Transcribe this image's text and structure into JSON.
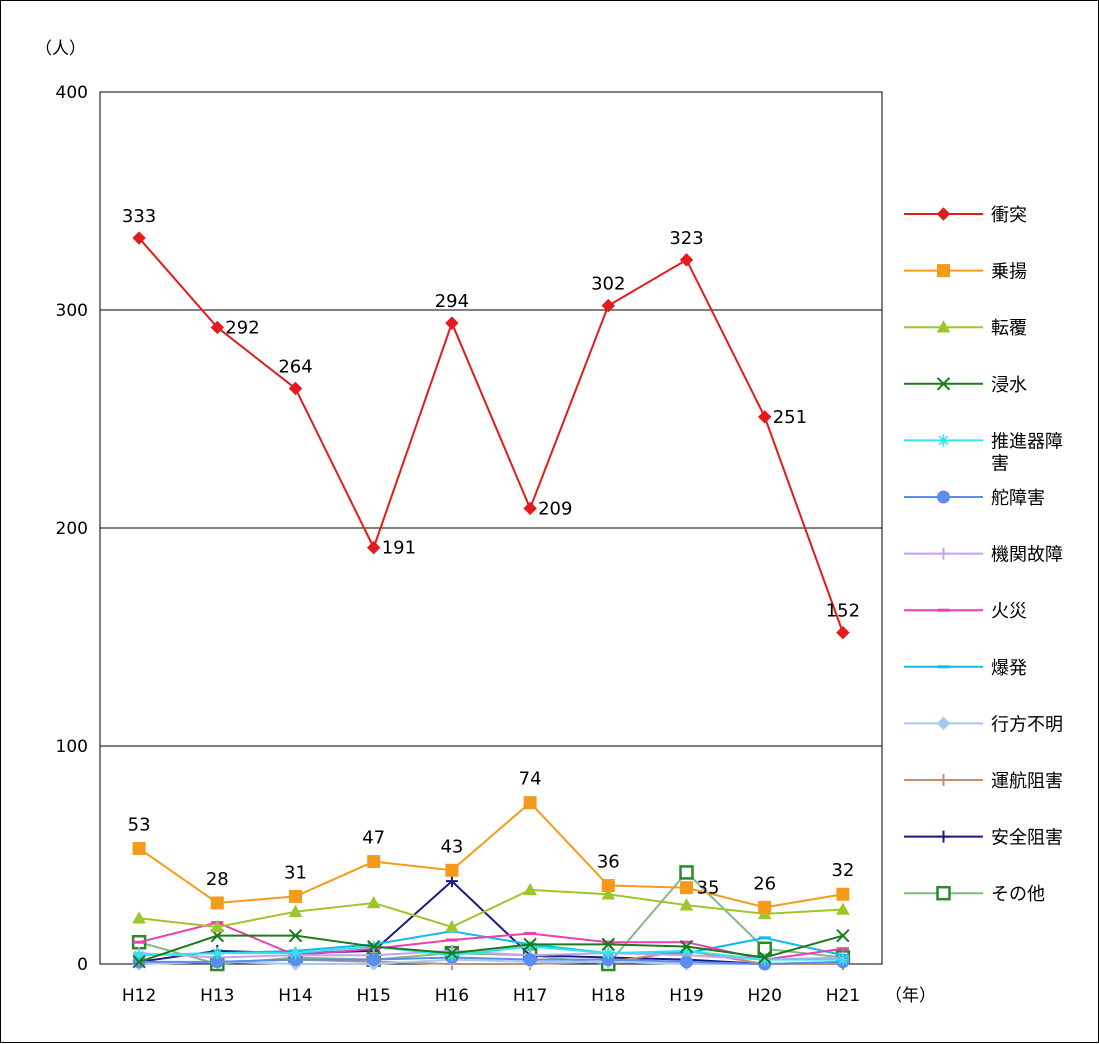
{
  "chart_data": {
    "type": "line",
    "y_unit_label": "（人）",
    "x_unit_label": "（年）",
    "categories": [
      "H12",
      "H13",
      "H14",
      "H15",
      "H16",
      "H17",
      "H18",
      "H19",
      "H20",
      "H21"
    ],
    "ylim": [
      0,
      400
    ],
    "yticks": [
      0,
      100,
      200,
      300,
      400
    ],
    "grid": true,
    "legend_position": "right",
    "series": [
      {
        "name": "衝突",
        "color": "#e41a1c",
        "marker": "diamond",
        "values": [
          333,
          292,
          264,
          191,
          294,
          209,
          302,
          323,
          251,
          152
        ],
        "labels": [
          "333",
          "292",
          "264",
          "191",
          "294",
          "209",
          "302",
          "323",
          "251",
          "152"
        ]
      },
      {
        "name": "乗揚",
        "color": "#f59b1c",
        "marker": "square",
        "values": [
          53,
          28,
          31,
          47,
          43,
          74,
          36,
          35,
          26,
          32
        ],
        "labels": [
          "53",
          "28",
          "31",
          "47",
          "43",
          "74",
          "36",
          "35",
          "26",
          "32"
        ]
      },
      {
        "name": "転覆",
        "color": "#9dc62c",
        "marker": "triangle",
        "values": [
          21,
          17,
          24,
          28,
          17,
          34,
          32,
          27,
          23,
          25
        ]
      },
      {
        "name": "浸水",
        "color": "#1b7a1b",
        "marker": "x",
        "values": [
          1,
          13,
          13,
          8,
          5,
          9,
          9,
          8,
          3,
          13
        ]
      },
      {
        "name": "推進器障害",
        "color": "#33e6e6",
        "marker": "asterisk",
        "values": [
          4,
          5,
          5,
          8,
          4,
          8,
          5,
          6,
          2,
          2
        ]
      },
      {
        "name": "舵障害",
        "color": "#5b8def",
        "marker": "circle",
        "values": [
          1,
          1,
          2,
          2,
          3,
          2,
          2,
          1,
          0,
          1
        ]
      },
      {
        "name": "機関故障",
        "color": "#c9a0f0",
        "marker": "plus",
        "values": [
          5,
          3,
          4,
          4,
          6,
          4,
          5,
          4,
          2,
          3
        ]
      },
      {
        "name": "火災",
        "color": "#ee3fb0",
        "marker": "dash",
        "values": [
          10,
          19,
          4,
          7,
          11,
          14,
          10,
          10,
          2,
          7
        ]
      },
      {
        "name": "爆発",
        "color": "#13b8f0",
        "marker": "dash",
        "values": [
          4,
          5,
          6,
          9,
          15,
          9,
          5,
          5,
          12,
          4
        ]
      },
      {
        "name": "行方不明",
        "color": "#a9c8f0",
        "marker": "diamond",
        "values": [
          0,
          1,
          0,
          0,
          2,
          1,
          1,
          0,
          0,
          1
        ]
      },
      {
        "name": "運航阻害",
        "color": "#c08f6e",
        "marker": "plus",
        "values": [
          0,
          1,
          2,
          1,
          0,
          0,
          1,
          6,
          0,
          0
        ]
      },
      {
        "name": "安全阻害",
        "color": "#1a1a80",
        "marker": "plus",
        "values": [
          1,
          6,
          5,
          6,
          38,
          4,
          3,
          2,
          0,
          0
        ]
      },
      {
        "name": "その他",
        "color": "#84b984",
        "marker": "square-open",
        "values": [
          10,
          0,
          3,
          2,
          5,
          4,
          0,
          42,
          7,
          3
        ]
      }
    ]
  }
}
